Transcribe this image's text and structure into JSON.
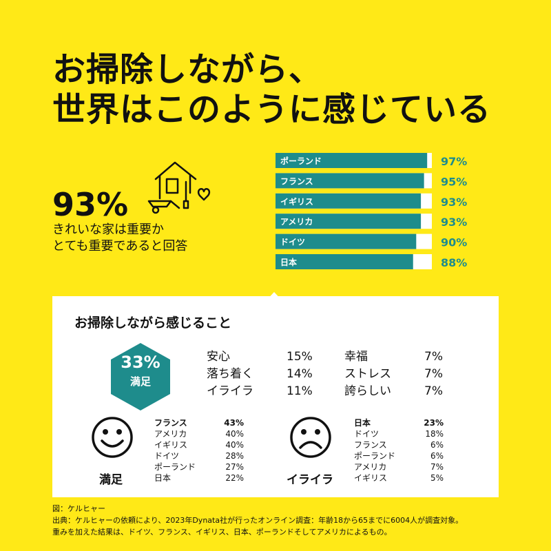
{
  "title_line1": "お掃除しながら、",
  "title_line2": "世界はこのように感じている",
  "headline": {
    "value": "93%",
    "desc_line1": "きれいな家は重要か",
    "desc_line2": "とても重要であると回答"
  },
  "icon": "house-with-wheelbarrow-icon",
  "colors": {
    "background": "#FFE917",
    "accent": "#1E8C8C",
    "card": "#FFFFFF"
  },
  "chart_data": [
    {
      "type": "bar",
      "orientation": "horizontal",
      "categories": [
        "ポーランド",
        "フランス",
        "イギリス",
        "アメリカ",
        "ドイツ",
        "日本"
      ],
      "values": [
        97,
        95,
        93,
        93,
        90,
        88
      ],
      "value_labels": [
        "97%",
        "95%",
        "93%",
        "93%",
        "90%",
        "88%"
      ],
      "xlim": [
        0,
        100
      ]
    },
    {
      "type": "table",
      "title": "お掃除しながら感じること",
      "highlight": {
        "value": "33%",
        "label": "満足"
      },
      "rows": [
        {
          "label": "安心",
          "value": "15%"
        },
        {
          "label": "落ち着く",
          "value": "14%"
        },
        {
          "label": "イライラ",
          "value": "11%"
        },
        {
          "label": "幸福",
          "value": "7%"
        },
        {
          "label": "ストレス",
          "value": "7%"
        },
        {
          "label": "誇らしい",
          "value": "7%"
        }
      ]
    },
    {
      "type": "table",
      "label": "満足",
      "icon": "smiley-face-icon",
      "rows": [
        {
          "country": "フランス",
          "value": "43%"
        },
        {
          "country": "アメリカ",
          "value": "40%"
        },
        {
          "country": "イギリス",
          "value": "40%"
        },
        {
          "country": "ドイツ",
          "value": "28%"
        },
        {
          "country": "ポーランド",
          "value": "27%"
        },
        {
          "country": "日本",
          "value": "22%"
        }
      ]
    },
    {
      "type": "table",
      "label": "イライラ",
      "icon": "frowning-face-icon",
      "rows": [
        {
          "country": "日本",
          "value": "23%"
        },
        {
          "country": "ドイツ",
          "value": "18%"
        },
        {
          "country": "フランス",
          "value": "6%"
        },
        {
          "country": "ポーランド",
          "value": "6%"
        },
        {
          "country": "アメリカ",
          "value": "7%"
        },
        {
          "country": "イギリス",
          "value": "5%"
        }
      ]
    }
  ],
  "footer": {
    "line1": "図：ケルヒャー",
    "line2": "出典：ケルヒャーの依頼により、2023年Dynata社が行ったオンライン調査：年齢18から65までに6004人が調査対象。",
    "line3": "重みを加えた結果は、ドイツ、フランス、イギリス、日本、ポーランドそしてアメリカによるもの。"
  }
}
